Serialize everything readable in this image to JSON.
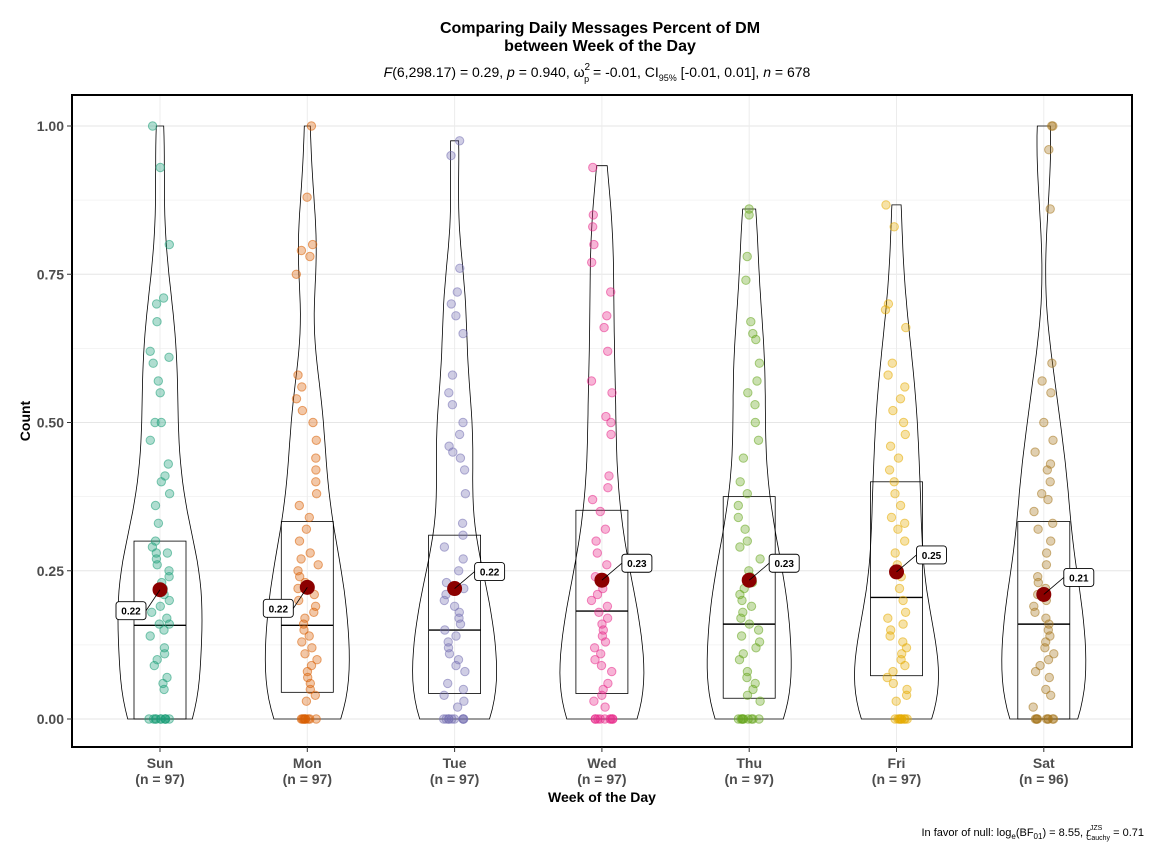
{
  "chart_data": {
    "type": "violin",
    "title_line1": "Comparing Daily Messages Percent of DM",
    "title_line2": "between Week of the Day",
    "subtitle": {
      "f_symbol": "F",
      "f_args": "(6,298.17) = 0.29, ",
      "p_symbol": "p",
      "p_value": " = 0.940, ω",
      "omega_sup": "2",
      "omega_sub": "p",
      "omega_value": " = -0.01, CI",
      "ci_sub": "95%",
      "ci_value": " [-0.01, 0.01], ",
      "n_symbol": "n",
      "n_value": " = 678"
    },
    "xlabel": "Week of the Day",
    "ylabel": "Count",
    "ylim": [
      0,
      1
    ],
    "yticks": [
      0.0,
      0.25,
      0.5,
      0.75,
      1.0
    ],
    "ytick_labels": [
      "0.00",
      "0.25",
      "0.50",
      "0.75",
      "1.00"
    ],
    "grid": true,
    "categories": [
      "Sun",
      "Mon",
      "Tue",
      "Wed",
      "Thu",
      "Fri",
      "Sat"
    ],
    "n_labels": [
      "(n = 97)",
      "(n = 97)",
      "(n = 97)",
      "(n = 97)",
      "(n = 97)",
      "(n = 97)",
      "(n = 96)"
    ],
    "colors": [
      "#1B9E77",
      "#D95F02",
      "#7570B3",
      "#E7298A",
      "#66A61E",
      "#E6AB02",
      "#A6761D"
    ],
    "mean_color": "#8B0000",
    "means": [
      0.218,
      0.222,
      0.22,
      0.234,
      0.234,
      0.248,
      0.21
    ],
    "mean_labels": [
      "0.22",
      "0.22",
      "0.22",
      "0.23",
      "0.23",
      "0.25",
      "0.21"
    ],
    "boxes": [
      {
        "q1": 0.0,
        "median": 0.158,
        "q3": 0.3,
        "max": 1.0
      },
      {
        "q1": 0.045,
        "median": 0.158,
        "q3": 0.333,
        "max": 1.0
      },
      {
        "q1": 0.043,
        "median": 0.15,
        "q3": 0.31,
        "max": 0.975
      },
      {
        "q1": 0.043,
        "median": 0.182,
        "q3": 0.352,
        "max": 0.933
      },
      {
        "q1": 0.035,
        "median": 0.16,
        "q3": 0.375,
        "max": 0.86
      },
      {
        "q1": 0.073,
        "median": 0.205,
        "q3": 0.4,
        "max": 0.867
      },
      {
        "q1": 0.0,
        "median": 0.16,
        "q3": 0.333,
        "max": 1.0
      }
    ],
    "points": [
      [
        0,
        0,
        0,
        0,
        0,
        0,
        0,
        0,
        0,
        0,
        0.05,
        0.06,
        0.07,
        0.09,
        0.1,
        0.11,
        0.12,
        0.14,
        0.15,
        0.16,
        0.16,
        0.17,
        0.18,
        0.19,
        0.2,
        0.21,
        0.22,
        0.23,
        0.24,
        0.25,
        0.26,
        0.27,
        0.28,
        0.28,
        0.29,
        0.3,
        0.33,
        0.36,
        0.38,
        0.4,
        0.41,
        0.43,
        0.47,
        0.5,
        0.5,
        0.55,
        0.57,
        0.6,
        0.61,
        0.62,
        0.67,
        0.7,
        0.71,
        0.8,
        0.93,
        1.0
      ],
      [
        0,
        0,
        0,
        0,
        0,
        0,
        0,
        0,
        0,
        0.03,
        0.04,
        0.05,
        0.06,
        0.07,
        0.08,
        0.09,
        0.1,
        0.11,
        0.12,
        0.13,
        0.14,
        0.15,
        0.16,
        0.17,
        0.18,
        0.19,
        0.2,
        0.21,
        0.22,
        0.23,
        0.24,
        0.25,
        0.26,
        0.27,
        0.28,
        0.3,
        0.32,
        0.34,
        0.36,
        0.38,
        0.4,
        0.42,
        0.44,
        0.47,
        0.5,
        0.52,
        0.54,
        0.56,
        0.58,
        0.75,
        0.78,
        0.79,
        0.8,
        0.88,
        1.0
      ],
      [
        0,
        0,
        0,
        0,
        0,
        0,
        0,
        0,
        0,
        0.02,
        0.03,
        0.04,
        0.05,
        0.06,
        0.08,
        0.09,
        0.1,
        0.11,
        0.12,
        0.13,
        0.14,
        0.15,
        0.16,
        0.17,
        0.18,
        0.19,
        0.2,
        0.21,
        0.22,
        0.23,
        0.25,
        0.27,
        0.29,
        0.31,
        0.33,
        0.38,
        0.42,
        0.44,
        0.45,
        0.46,
        0.48,
        0.5,
        0.53,
        0.55,
        0.58,
        0.65,
        0.68,
        0.7,
        0.72,
        0.76,
        0.95,
        0.975
      ],
      [
        0,
        0,
        0,
        0,
        0,
        0,
        0,
        0,
        0,
        0.02,
        0.03,
        0.04,
        0.05,
        0.06,
        0.08,
        0.09,
        0.1,
        0.11,
        0.12,
        0.13,
        0.14,
        0.15,
        0.16,
        0.17,
        0.18,
        0.19,
        0.2,
        0.21,
        0.22,
        0.24,
        0.26,
        0.28,
        0.3,
        0.32,
        0.35,
        0.37,
        0.39,
        0.41,
        0.48,
        0.5,
        0.51,
        0.55,
        0.57,
        0.62,
        0.66,
        0.68,
        0.72,
        0.77,
        0.8,
        0.83,
        0.85,
        0.93
      ],
      [
        0,
        0,
        0,
        0,
        0,
        0,
        0,
        0,
        0,
        0.03,
        0.04,
        0.05,
        0.06,
        0.07,
        0.08,
        0.1,
        0.11,
        0.12,
        0.13,
        0.14,
        0.15,
        0.16,
        0.17,
        0.18,
        0.19,
        0.2,
        0.21,
        0.22,
        0.23,
        0.24,
        0.25,
        0.27,
        0.29,
        0.3,
        0.32,
        0.34,
        0.36,
        0.38,
        0.4,
        0.44,
        0.47,
        0.5,
        0.53,
        0.55,
        0.57,
        0.6,
        0.64,
        0.65,
        0.67,
        0.74,
        0.78,
        0.85,
        0.86
      ],
      [
        0,
        0,
        0,
        0,
        0,
        0,
        0,
        0,
        0,
        0.03,
        0.04,
        0.05,
        0.06,
        0.07,
        0.08,
        0.09,
        0.1,
        0.11,
        0.12,
        0.13,
        0.14,
        0.15,
        0.16,
        0.17,
        0.18,
        0.2,
        0.22,
        0.24,
        0.26,
        0.28,
        0.3,
        0.32,
        0.33,
        0.34,
        0.36,
        0.38,
        0.4,
        0.42,
        0.44,
        0.46,
        0.48,
        0.5,
        0.52,
        0.54,
        0.56,
        0.58,
        0.6,
        0.66,
        0.69,
        0.7,
        0.83,
        0.867
      ],
      [
        0,
        0,
        0,
        0,
        0,
        0,
        0,
        0,
        0,
        0.02,
        0.04,
        0.05,
        0.07,
        0.08,
        0.09,
        0.1,
        0.11,
        0.12,
        0.13,
        0.14,
        0.15,
        0.16,
        0.17,
        0.18,
        0.19,
        0.2,
        0.21,
        0.22,
        0.23,
        0.24,
        0.26,
        0.28,
        0.3,
        0.32,
        0.33,
        0.35,
        0.37,
        0.38,
        0.4,
        0.42,
        0.43,
        0.45,
        0.47,
        0.5,
        0.55,
        0.57,
        0.6,
        0.86,
        0.96,
        1.0,
        1.0
      ]
    ],
    "caption": {
      "prefix": "In favor of null: log",
      "log_sub": "e",
      "bf": "(BF",
      "bf_sub": "01",
      "bf_value": ") = 8.55, ",
      "r_symbol": "r",
      "r_sup": "JZS",
      "r_sub": "Cauchy",
      "r_value": " = 0.71"
    }
  }
}
